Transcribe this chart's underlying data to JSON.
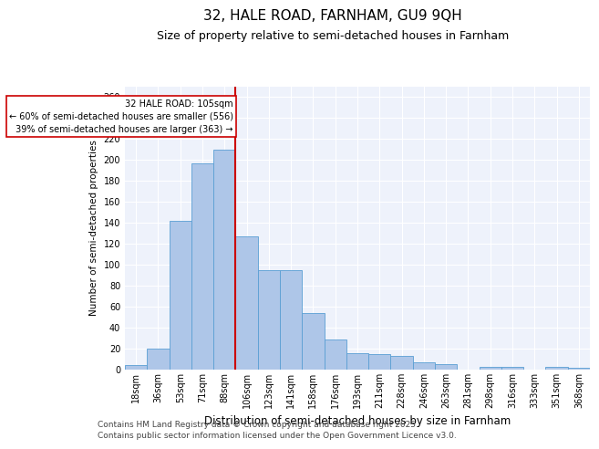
{
  "title": "32, HALE ROAD, FARNHAM, GU9 9QH",
  "subtitle": "Size of property relative to semi-detached houses in Farnham",
  "xlabel": "Distribution of semi-detached houses by size in Farnham",
  "ylabel": "Number of semi-detached properties",
  "categories": [
    "18sqm",
    "36sqm",
    "53sqm",
    "71sqm",
    "88sqm",
    "106sqm",
    "123sqm",
    "141sqm",
    "158sqm",
    "176sqm",
    "193sqm",
    "211sqm",
    "228sqm",
    "246sqm",
    "263sqm",
    "281sqm",
    "298sqm",
    "316sqm",
    "333sqm",
    "351sqm",
    "368sqm"
  ],
  "values": [
    4,
    20,
    142,
    197,
    210,
    127,
    95,
    95,
    54,
    29,
    16,
    15,
    13,
    7,
    5,
    0,
    3,
    3,
    0,
    3,
    2
  ],
  "bar_color": "#aec6e8",
  "bar_edge_color": "#5a9fd4",
  "vline_index": 5,
  "highlight_label": "32 HALE ROAD: 105sqm",
  "highlight_pct_smaller": "60% of semi-detached houses are smaller (556)",
  "highlight_pct_larger": "39% of semi-detached houses are larger (363)",
  "vline_color": "#cc0000",
  "box_edge_color": "#cc0000",
  "ylim": [
    0,
    270
  ],
  "yticks": [
    0,
    20,
    40,
    60,
    80,
    100,
    120,
    140,
    160,
    180,
    200,
    220,
    240,
    260
  ],
  "footnote1": "Contains HM Land Registry data © Crown copyright and database right 2025.",
  "footnote2": "Contains public sector information licensed under the Open Government Licence v3.0.",
  "background_color": "#eef2fb",
  "title_fontsize": 11,
  "subtitle_fontsize": 9,
  "xlabel_fontsize": 8.5,
  "ylabel_fontsize": 7.5,
  "footnote_fontsize": 6.5,
  "tick_fontsize": 7
}
